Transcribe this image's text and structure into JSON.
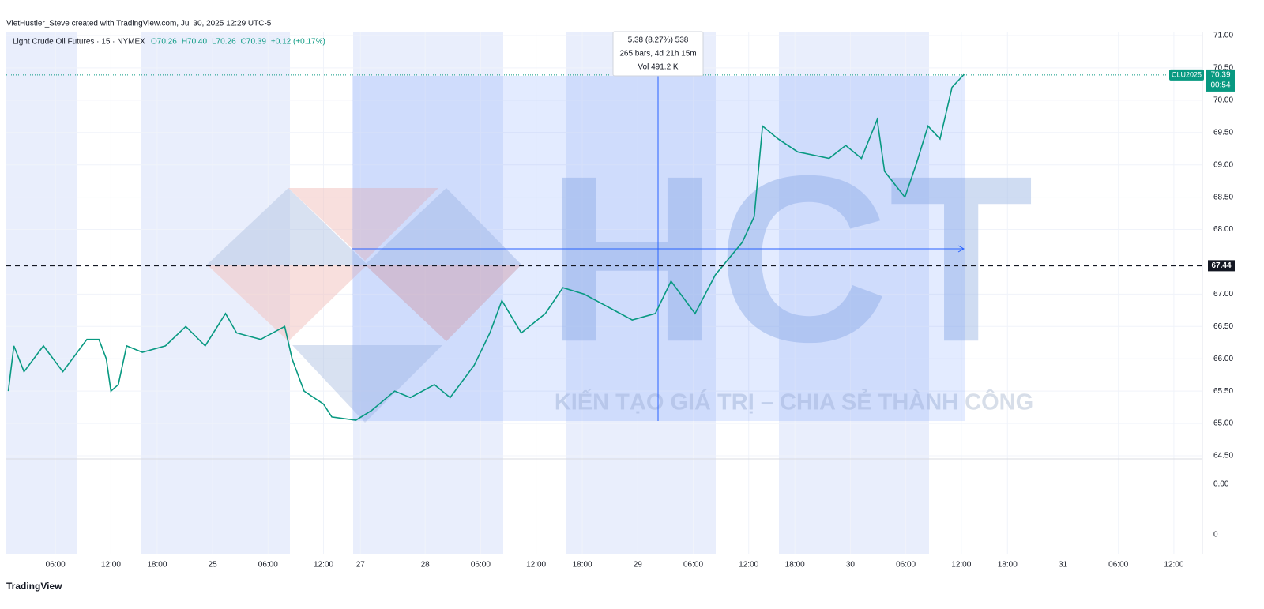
{
  "header": "VietHustler_Steve created with TradingView.com, Jul 30, 2025 12:29 UTC-5",
  "chart_data": {
    "type": "line",
    "title": "Light Crude Oil Futures · 15 · NYMEX",
    "ohlc": [
      "O70.26",
      "H70.40",
      "L70.26",
      "C70.39"
    ],
    "change": "+0.12 (+0.17%)",
    "x": [
      0.9,
      1.5,
      2.6,
      4.7,
      6.8,
      9.4,
      10.7,
      11.5,
      12.0,
      12.8,
      13.7,
      15.4,
      17.9,
      20.1,
      22.2,
      24.4,
      25.6,
      28.2,
      30.8,
      31.6,
      32.9,
      35.0,
      35.9,
      38.5,
      40.2,
      42.7,
      44.4,
      47.0,
      48.7,
      51.3,
      53.0,
      54.3,
      56.4,
      59.0,
      60.9,
      63.2,
      65.8,
      68.4,
      70.9,
      72.6,
      75.2,
      77.4,
      80.3,
      81.6,
      82.5,
      84.2,
      86.3,
      89.7,
      91.5,
      93.2,
      94.9,
      95.7,
      97.9,
      99.1,
      100.4,
      101.7,
      103.0,
      104.3
    ],
    "series": [
      {
        "name": "CLU2025",
        "color": "#089981",
        "values": [
          65.5,
          66.2,
          65.8,
          66.2,
          65.8,
          66.3,
          66.3,
          66.0,
          65.5,
          65.6,
          66.2,
          66.1,
          66.2,
          66.5,
          66.2,
          66.7,
          66.4,
          66.3,
          66.5,
          66.0,
          65.5,
          65.3,
          65.1,
          65.05,
          65.2,
          65.5,
          65.4,
          65.6,
          65.4,
          65.9,
          66.4,
          66.9,
          66.4,
          66.7,
          67.1,
          67.0,
          66.8,
          66.6,
          66.7,
          67.2,
          66.7,
          67.3,
          67.8,
          68.2,
          69.6,
          69.4,
          69.2,
          69.1,
          69.3,
          69.1,
          69.7,
          68.9,
          68.5,
          69.0,
          69.6,
          69.4,
          70.2,
          70.4
        ]
      }
    ],
    "xlim": [
      0,
      130
    ],
    "xticks": [
      {
        "value": 6,
        "label": "06:00"
      },
      {
        "value": 12,
        "label": "12:00"
      },
      {
        "value": 17,
        "label": "18:00"
      },
      {
        "value": 23,
        "label": "25"
      },
      {
        "value": 29,
        "label": "06:00"
      },
      {
        "value": 35,
        "label": "12:00"
      },
      {
        "value": 39,
        "label": "27"
      },
      {
        "value": 46,
        "label": "28"
      },
      {
        "value": 52,
        "label": "06:00"
      },
      {
        "value": 58,
        "label": "12:00"
      },
      {
        "value": 63,
        "label": "18:00"
      },
      {
        "value": 69,
        "label": "29"
      },
      {
        "value": 75,
        "label": "06:00"
      },
      {
        "value": 81,
        "label": "12:00"
      },
      {
        "value": 86,
        "label": "18:00"
      },
      {
        "value": 92,
        "label": "30"
      },
      {
        "value": 98,
        "label": "06:00"
      },
      {
        "value": 104,
        "label": "12:00"
      },
      {
        "value": 109,
        "label": "18:00"
      },
      {
        "value": 115,
        "label": "31"
      },
      {
        "value": 121,
        "label": "06:00"
      },
      {
        "value": 127,
        "label": "12:00"
      }
    ],
    "ylim": [
      64.5,
      71
    ],
    "yticks": [
      {
        "value": 71,
        "label": "71.00"
      },
      {
        "value": 70.5,
        "label": "70.50"
      },
      {
        "value": 70,
        "label": "70.00"
      },
      {
        "value": 69.5,
        "label": "69.50"
      },
      {
        "value": 69,
        "label": "69.00"
      },
      {
        "value": 68.5,
        "label": "68.50"
      },
      {
        "value": 68,
        "label": "68.00"
      },
      {
        "value": 67,
        "label": "67.00"
      },
      {
        "value": 66.5,
        "label": "66.50"
      },
      {
        "value": 66,
        "label": "66.00"
      },
      {
        "value": 65.5,
        "label": "65.50"
      },
      {
        "value": 65,
        "label": "65.00"
      },
      {
        "value": 64.5,
        "label": "64.50"
      }
    ],
    "grid": true,
    "last_price": 70.39,
    "countdown": "00:54",
    "horizontal_line": 67.44,
    "measure": [
      "5.38 (8.27%) 538",
      "265 bars, 4d 21h 15m",
      "Vol 491.2 K"
    ],
    "lower_pane_ticks": [
      "0.00",
      "0"
    ]
  },
  "watermark": {
    "logo": "HCT",
    "slogan": "KIẾN TẠO GIÁ TRỊ – CHIA SẺ THÀNH CÔNG"
  },
  "footer": "TradingView"
}
